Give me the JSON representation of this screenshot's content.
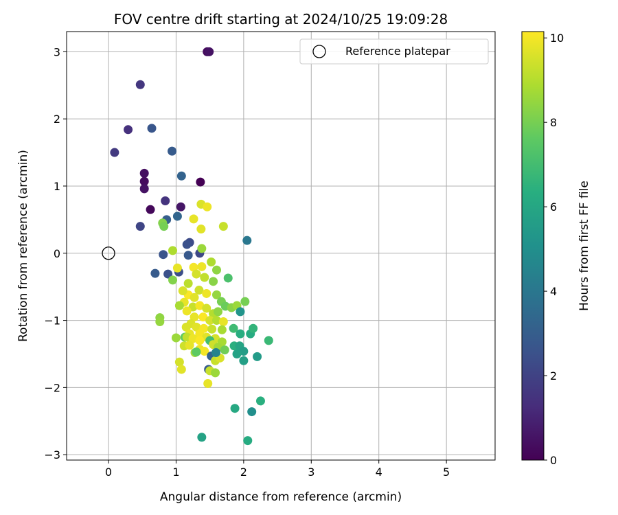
{
  "chart_data": {
    "type": "scatter",
    "title": "FOV centre drift starting at 2024/10/25 19:09:28",
    "xlabel": "Angular distance from reference (arcmin)",
    "ylabel": "Rotation from reference (arcmin)",
    "xlim": [
      -0.62,
      5.72
    ],
    "ylim": [
      -3.08,
      3.3
    ],
    "xticks": [
      0,
      1,
      2,
      3,
      4,
      5
    ],
    "yticks": [
      -3,
      -2,
      -1,
      0,
      1,
      2,
      3
    ],
    "xtick_labels": [
      "0",
      "1",
      "2",
      "3",
      "4",
      "5"
    ],
    "ytick_labels": [
      "−3",
      "−2",
      "−1",
      "0",
      "1",
      "2",
      "3"
    ],
    "grid": true,
    "legend": {
      "position": "top-right",
      "label": "Reference platepar"
    },
    "reference_point": [
      0,
      0
    ],
    "colorbar": {
      "label": "Hours from first FF file",
      "range": [
        0,
        10.15
      ],
      "ticks": [
        0,
        2,
        4,
        6,
        8,
        10
      ],
      "tick_labels": [
        "0",
        "2",
        "4",
        "6",
        "8",
        "10"
      ],
      "colormap": "viridis"
    },
    "points": [
      [
        1.46,
        3.0,
        0.3
      ],
      [
        1.49,
        3.0,
        0.5
      ],
      [
        0.47,
        2.51,
        1.6
      ],
      [
        0.29,
        1.84,
        1.4
      ],
      [
        0.64,
        1.86,
        2.7
      ],
      [
        0.09,
        1.5,
        1.7
      ],
      [
        0.94,
        1.52,
        2.9
      ],
      [
        0.53,
        1.19,
        0.4
      ],
      [
        1.08,
        1.15,
        3.2
      ],
      [
        0.53,
        1.07,
        0.3
      ],
      [
        0.53,
        0.96,
        0.5
      ],
      [
        0.84,
        0.78,
        1.5
      ],
      [
        0.62,
        0.65,
        0.2
      ],
      [
        1.07,
        0.69,
        0.6
      ],
      [
        0.47,
        0.4,
        2.1
      ],
      [
        0.86,
        0.5,
        3.0
      ],
      [
        1.02,
        0.55,
        3.3
      ],
      [
        2.05,
        0.19,
        4.0
      ],
      [
        1.2,
        0.16,
        2.3
      ],
      [
        1.16,
        0.13,
        2.5
      ],
      [
        0.81,
        -0.02,
        2.6
      ],
      [
        1.18,
        -0.03,
        2.8
      ],
      [
        1.35,
        0.0,
        2.2
      ],
      [
        0.69,
        -0.3,
        2.9
      ],
      [
        0.88,
        -0.31,
        2.5
      ],
      [
        1.04,
        -0.28,
        2.4
      ],
      [
        1.36,
        1.06,
        0.0
      ],
      [
        1.37,
        0.73,
        9.6
      ],
      [
        1.46,
        0.69,
        9.9
      ],
      [
        1.26,
        0.51,
        9.8
      ],
      [
        1.37,
        0.36,
        9.7
      ],
      [
        0.8,
        0.45,
        8.2
      ],
      [
        0.82,
        0.4,
        8.0
      ],
      [
        0.95,
        0.04,
        8.9
      ],
      [
        1.38,
        0.07,
        8.6
      ],
      [
        1.7,
        0.4,
        9.3
      ],
      [
        1.6,
        -0.25,
        8.4
      ],
      [
        1.52,
        -0.13,
        8.9
      ],
      [
        1.77,
        -0.37,
        7.2
      ],
      [
        0.95,
        -0.4,
        8.2
      ],
      [
        1.02,
        -0.22,
        9.8
      ],
      [
        1.26,
        -0.21,
        10.0
      ],
      [
        1.18,
        -0.45,
        9.1
      ],
      [
        1.3,
        -0.31,
        9.5
      ],
      [
        1.38,
        -0.2,
        9.9
      ],
      [
        1.42,
        -0.36,
        9.2
      ],
      [
        1.55,
        -0.42,
        8.3
      ],
      [
        1.34,
        -0.55,
        9.4
      ],
      [
        1.18,
        -0.62,
        10.1
      ],
      [
        1.27,
        -0.66,
        9.7
      ],
      [
        1.45,
        -0.6,
        9.9
      ],
      [
        1.6,
        -0.62,
        8.5
      ],
      [
        1.67,
        -0.72,
        8.0
      ],
      [
        1.1,
        -0.56,
        9.6
      ],
      [
        1.12,
        -0.73,
        9.8
      ],
      [
        1.05,
        -0.78,
        8.8
      ],
      [
        1.25,
        -0.8,
        9.3
      ],
      [
        1.35,
        -0.78,
        10.0
      ],
      [
        1.45,
        -0.82,
        9.5
      ],
      [
        1.55,
        -0.9,
        9.0
      ],
      [
        1.62,
        -0.87,
        8.4
      ],
      [
        1.73,
        -0.79,
        7.8
      ],
      [
        1.82,
        -0.81,
        8.3
      ],
      [
        1.9,
        -0.78,
        8.6
      ],
      [
        2.02,
        -0.72,
        8.0
      ],
      [
        1.95,
        -0.87,
        5.2
      ],
      [
        1.16,
        -0.86,
        9.9
      ],
      [
        1.27,
        -0.95,
        9.8
      ],
      [
        1.4,
        -0.95,
        10.1
      ],
      [
        1.5,
        -1.0,
        9.5
      ],
      [
        1.6,
        -1.0,
        9.0
      ],
      [
        1.7,
        -1.02,
        9.8
      ],
      [
        1.22,
        -1.05,
        9.6
      ],
      [
        1.3,
        -1.1,
        9.7
      ],
      [
        1.41,
        -1.12,
        10.0
      ],
      [
        1.53,
        -1.13,
        9.3
      ],
      [
        1.68,
        -1.14,
        8.8
      ],
      [
        1.85,
        -1.12,
        6.9
      ],
      [
        1.95,
        -1.2,
        6.3
      ],
      [
        2.1,
        -1.2,
        6.2
      ],
      [
        2.14,
        -1.12,
        6.6
      ],
      [
        0.76,
        -0.96,
        8.4
      ],
      [
        0.76,
        -1.02,
        8.5
      ],
      [
        1.15,
        -1.1,
        9.6
      ],
      [
        1.2,
        -1.2,
        9.8
      ],
      [
        1.35,
        -1.2,
        10.0
      ],
      [
        1.45,
        -1.25,
        9.7
      ],
      [
        1.58,
        -1.27,
        9.5
      ],
      [
        1.68,
        -1.32,
        8.8
      ],
      [
        1.5,
        -1.3,
        7.0
      ],
      [
        1.13,
        -1.25,
        7.6
      ],
      [
        1.16,
        -1.25,
        9.2
      ],
      [
        1.25,
        -1.27,
        9.9
      ],
      [
        1.35,
        -1.3,
        10.1
      ],
      [
        1.55,
        -1.36,
        9.4
      ],
      [
        1.62,
        -1.4,
        8.7
      ],
      [
        1.72,
        -1.44,
        7.9
      ],
      [
        1.86,
        -1.38,
        6.4
      ],
      [
        1.94,
        -1.38,
        5.9
      ],
      [
        2.0,
        -1.46,
        5.6
      ],
      [
        1.9,
        -1.5,
        5.8
      ],
      [
        2.0,
        -1.6,
        5.7
      ],
      [
        2.2,
        -1.54,
        5.5
      ],
      [
        2.37,
        -1.3,
        6.8
      ],
      [
        1.0,
        -1.26,
        8.6
      ],
      [
        1.12,
        -1.38,
        9.4
      ],
      [
        1.2,
        -1.37,
        9.8
      ],
      [
        1.28,
        -1.48,
        8.7
      ],
      [
        1.35,
        -1.43,
        9.9
      ],
      [
        1.42,
        -1.46,
        10.0
      ],
      [
        1.52,
        -1.53,
        3.2
      ],
      [
        1.58,
        -1.6,
        9.3
      ],
      [
        1.65,
        -1.56,
        9.6
      ],
      [
        1.59,
        -1.48,
        4.5
      ],
      [
        1.3,
        -1.47,
        7.6
      ],
      [
        1.48,
        -1.73,
        2.9
      ],
      [
        1.5,
        -1.75,
        9.3
      ],
      [
        1.58,
        -1.78,
        8.6
      ],
      [
        1.05,
        -1.62,
        9.5
      ],
      [
        1.08,
        -1.73,
        9.7
      ],
      [
        1.47,
        -1.94,
        9.8
      ],
      [
        1.87,
        -2.31,
        6.1
      ],
      [
        2.25,
        -2.2,
        6.4
      ],
      [
        2.12,
        -2.36,
        5.0
      ],
      [
        1.38,
        -2.74,
        5.8
      ],
      [
        2.06,
        -2.79,
        6.2
      ]
    ]
  }
}
